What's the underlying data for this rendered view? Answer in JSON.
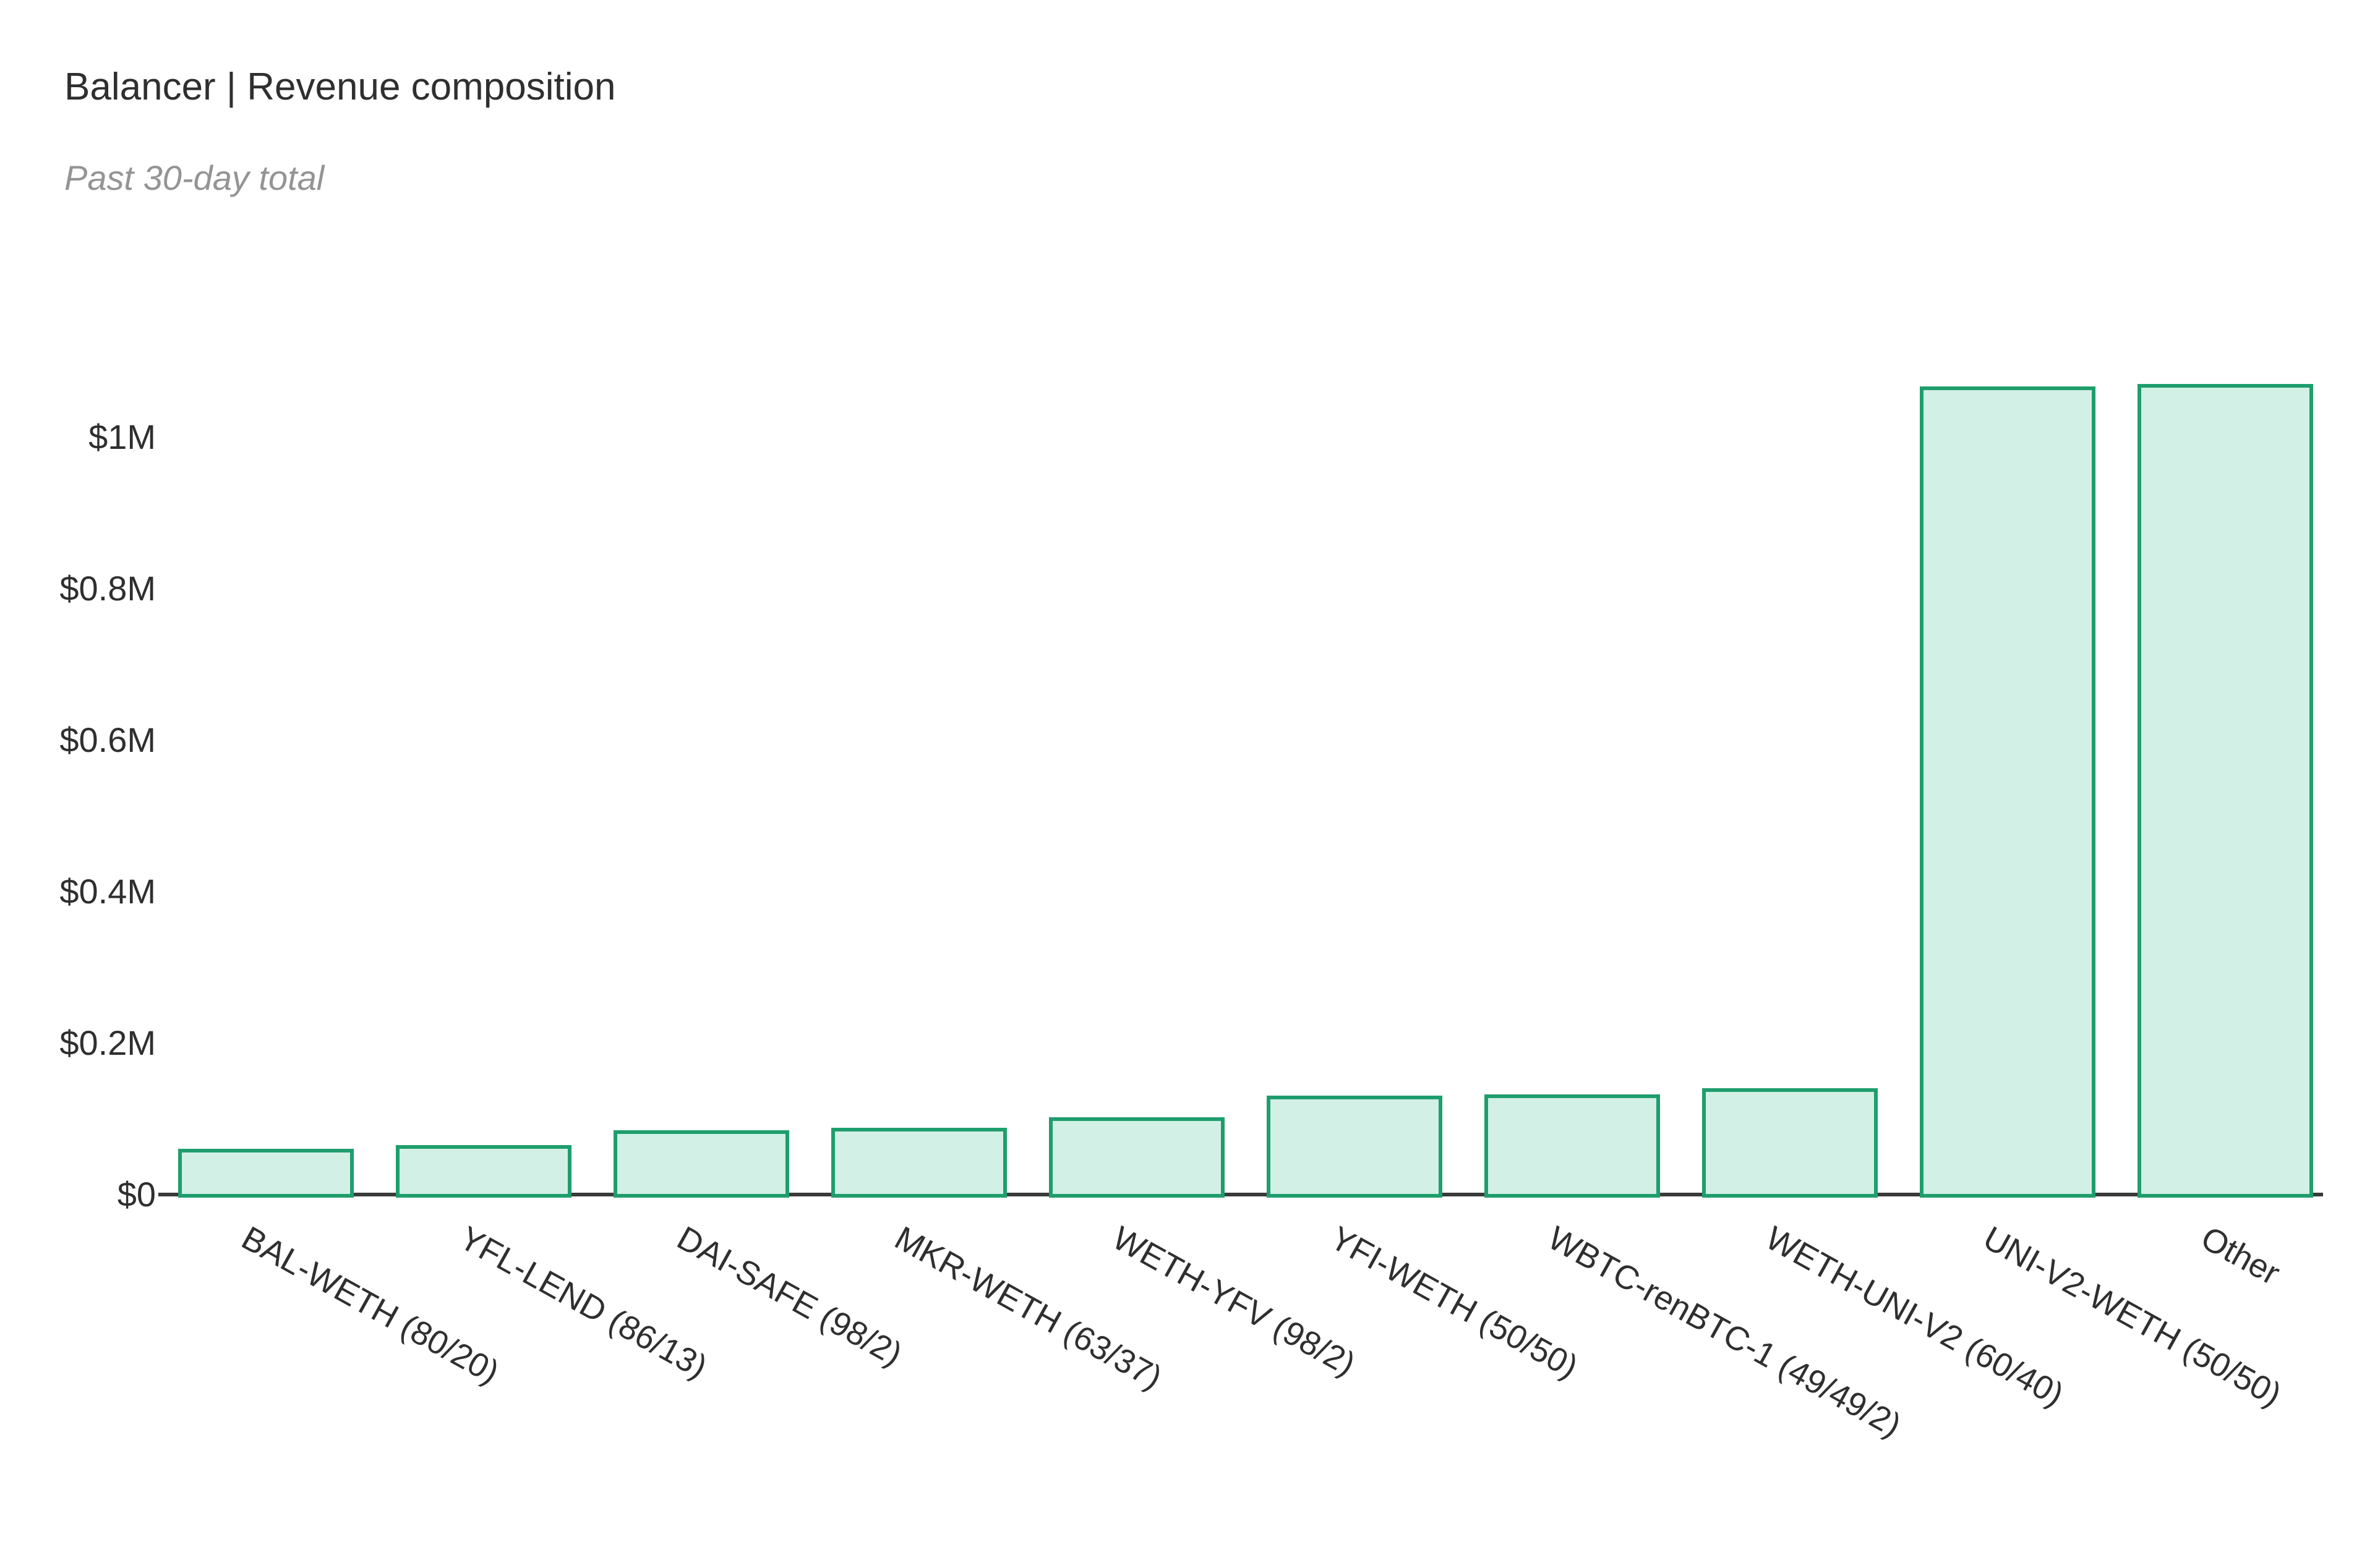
{
  "page": {
    "background": "#ffffff"
  },
  "header": {
    "title": "Balancer | Revenue composition",
    "subtitle": "Past 30-day total"
  },
  "chart_data": {
    "type": "bar",
    "title": "Balancer | Revenue composition",
    "subtitle": "Past 30-day total",
    "categories": [
      "BAL-WETH (80/20)",
      "YFL-LEND (86/13)",
      "DAI-SAFE (98/2)",
      "MKR-WETH (63/37)",
      "WETH-YFV (98/2)",
      "YFI-WETH (50/50)",
      "WBTC-renBTC-1 (49/49/2)",
      "WETH-UNI-V2 (60/40)",
      "UNI-V2-WETH (50/50)",
      "Other"
    ],
    "values": [
      60000,
      65000,
      85000,
      88000,
      102000,
      131000,
      132000,
      140000,
      1067000,
      1070000
    ],
    "unit": "USD",
    "xlabel": "",
    "ylabel": "",
    "y_ticks": [
      {
        "label": "$0",
        "value": 0
      },
      {
        "label": "$0.2M",
        "value": 200000
      },
      {
        "label": "$0.4M",
        "value": 400000
      },
      {
        "label": "$0.6M",
        "value": 600000
      },
      {
        "label": "$0.8M",
        "value": 800000
      },
      {
        "label": "$1M",
        "value": 1000000
      }
    ],
    "ylim": [
      0,
      1075000
    ],
    "grid": false,
    "legend": null,
    "x_label_rotation_deg": 29,
    "bar_fill": "#d2f0e5",
    "bar_stroke": "#1f9e6d",
    "axis_color": "#3a3a3a",
    "text_color": "#2f2f2f",
    "subtitle_color": "#949494"
  }
}
